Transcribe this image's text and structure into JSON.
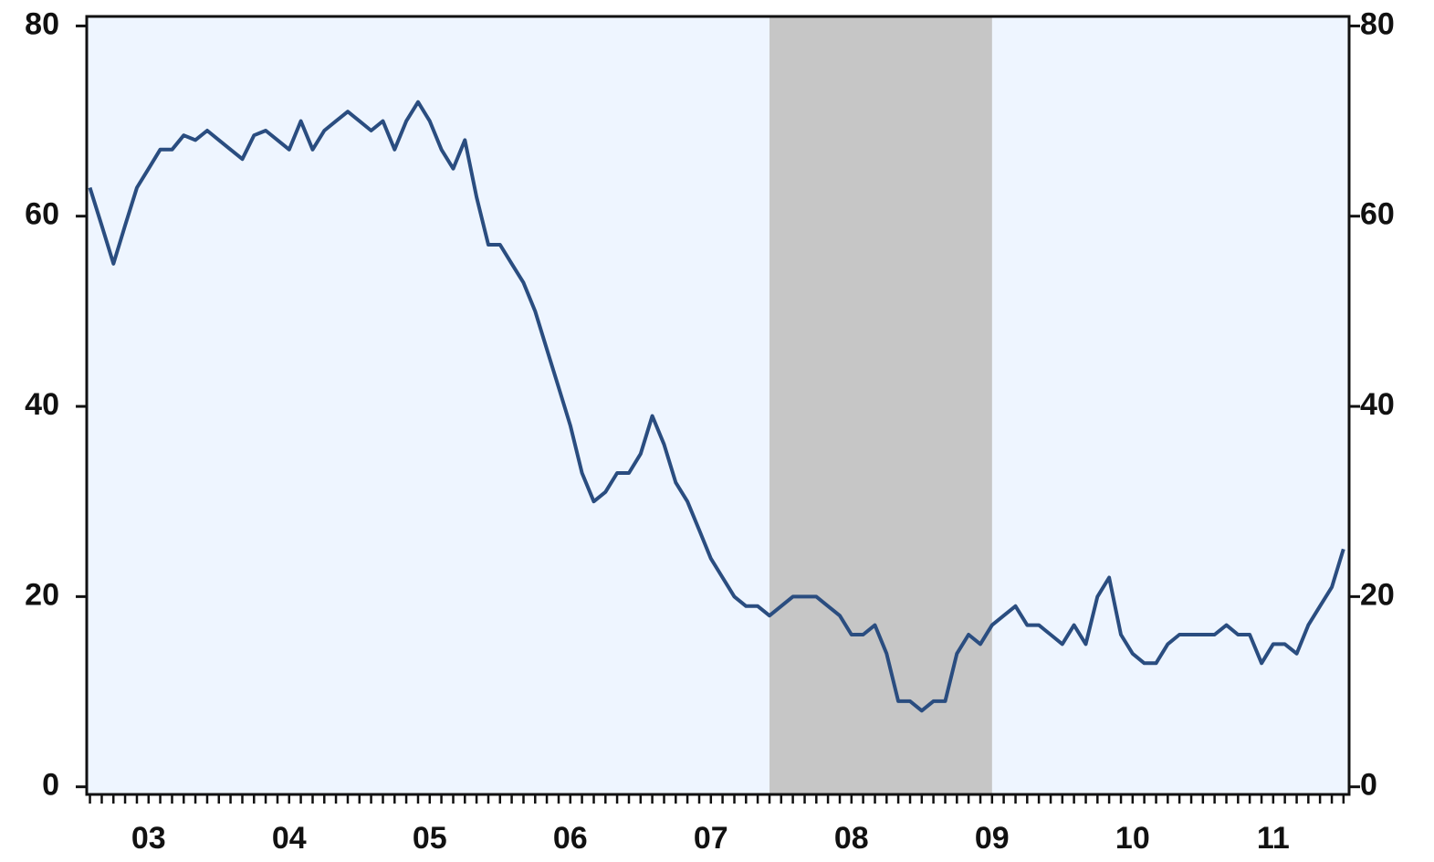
{
  "chart_data": {
    "type": "line",
    "x": [
      2003.083,
      2003.167,
      2003.25,
      2003.333,
      2003.417,
      2003.5,
      2003.583,
      2003.667,
      2003.75,
      2003.833,
      2003.917,
      2004,
      2004.083,
      2004.167,
      2004.25,
      2004.333,
      2004.417,
      2004.5,
      2004.583,
      2004.667,
      2004.75,
      2004.833,
      2004.917,
      2005,
      2005.083,
      2005.167,
      2005.25,
      2005.333,
      2005.417,
      2005.5,
      2005.583,
      2005.667,
      2005.75,
      2005.833,
      2005.917,
      2006,
      2006.083,
      2006.167,
      2006.25,
      2006.333,
      2006.417,
      2006.5,
      2006.583,
      2006.667,
      2006.75,
      2006.833,
      2006.917,
      2007,
      2007.083,
      2007.167,
      2007.25,
      2007.333,
      2007.417,
      2007.5,
      2007.583,
      2007.667,
      2007.75,
      2007.833,
      2007.917,
      2008,
      2008.083,
      2008.167,
      2008.25,
      2008.333,
      2008.417,
      2008.5,
      2008.583,
      2008.667,
      2008.75,
      2008.833,
      2008.917,
      2009,
      2009.083,
      2009.167,
      2009.25,
      2009.333,
      2009.417,
      2009.5,
      2009.583,
      2009.667,
      2009.75,
      2009.833,
      2009.917,
      2010,
      2010.083,
      2010.167,
      2010.25,
      2010.333,
      2010.417,
      2010.5,
      2010.583,
      2010.667,
      2010.75,
      2010.833,
      2010.917,
      2011,
      2011.083,
      2011.167,
      2011.25,
      2011.333,
      2011.417,
      2011.5,
      2011.583,
      2011.667,
      2011.75,
      2011.833,
      2011.917,
      2012
    ],
    "series": [
      {
        "color": "#2a4d80",
        "values": [
          63,
          59,
          55,
          59,
          63,
          65,
          67,
          67,
          68.5,
          68,
          69,
          68,
          67,
          66,
          68.5,
          69,
          68,
          67,
          70,
          67,
          69,
          70,
          71,
          70,
          69,
          70,
          67,
          70,
          72,
          70,
          67,
          65,
          68,
          62,
          57,
          57,
          55,
          53,
          50,
          46,
          42,
          38,
          33,
          30,
          31,
          33,
          33,
          35,
          39,
          36,
          32,
          30,
          27,
          24,
          22,
          20,
          19,
          19,
          18,
          19,
          20,
          20,
          20,
          19,
          18,
          16,
          16,
          17,
          14,
          9,
          9,
          8,
          9,
          9,
          14,
          16,
          15,
          17,
          18,
          19,
          17,
          17,
          16,
          15,
          17,
          15,
          20,
          22,
          16,
          14,
          13,
          13,
          15,
          16,
          16,
          16,
          16,
          17,
          16,
          16,
          13,
          15,
          15,
          14,
          17,
          19,
          21,
          25
        ]
      }
    ],
    "shaded": [
      2007.917,
      2009.5
    ],
    "xlim": [
      2003.06,
      2012.04
    ],
    "xticks": [
      {
        "value": 2003.5,
        "label": "03"
      },
      {
        "value": 2004.5,
        "label": "04"
      },
      {
        "value": 2005.5,
        "label": "05"
      },
      {
        "value": 2006.5,
        "label": "06"
      },
      {
        "value": 2007.5,
        "label": "07"
      },
      {
        "value": 2008.5,
        "label": "08"
      },
      {
        "value": 2009.5,
        "label": "09"
      },
      {
        "value": 2010.5,
        "label": "10"
      },
      {
        "value": 2011.5,
        "label": "11"
      }
    ],
    "ylim": [
      -0.8,
      81
    ],
    "yticks": [
      0,
      20,
      40,
      60,
      80
    ],
    "y2lim": [
      -0.8,
      81
    ],
    "y2ticks": [
      0,
      20,
      40,
      60,
      80
    ]
  }
}
